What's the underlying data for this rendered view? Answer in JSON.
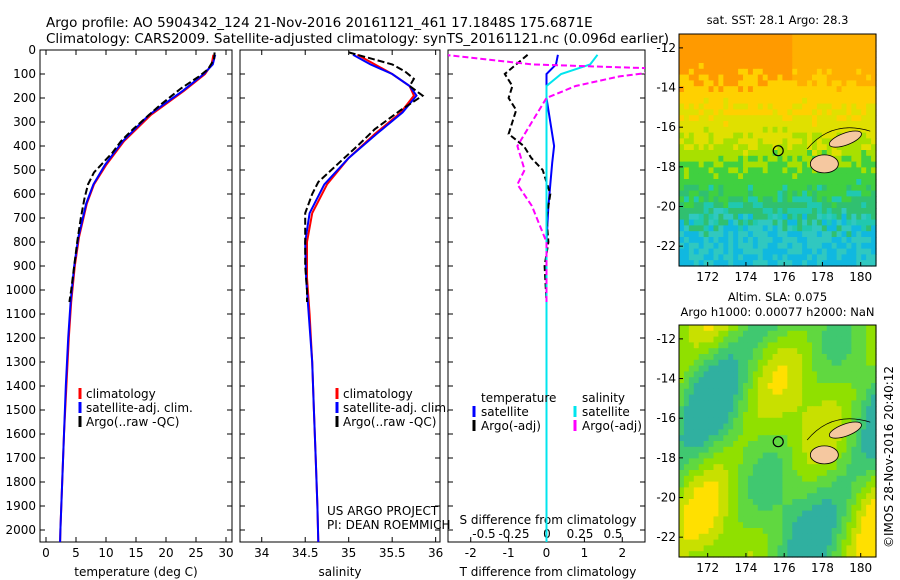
{
  "header": {
    "line1": "Argo profile: AO 5904342_124 21-Nov-2016 20161121_461 17.1848S 175.6871E",
    "line2": "Climatology: CARS2009. Satellite-adjusted climatology: synTS_20161121.nc (0.096d earlier)"
  },
  "colors": {
    "climatology": "#ff0000",
    "satellite": "#0000ff",
    "argo": "#000000",
    "salinity_satellite": "#00e5ee",
    "salinity_argo": "#ff00ff",
    "land": "#f5c8a0"
  },
  "chart_data": [
    {
      "type": "line",
      "id": "temperature",
      "xlabel": "temperature (deg C)",
      "xlim": [
        -1,
        31
      ],
      "xticks": [
        0,
        5,
        10,
        15,
        20,
        25,
        30
      ],
      "ylim": [
        0,
        2050
      ],
      "yticks": [
        0,
        100,
        200,
        300,
        400,
        500,
        600,
        700,
        800,
        900,
        1000,
        1100,
        1200,
        1300,
        1400,
        1500,
        1600,
        1700,
        1800,
        1900,
        2000
      ],
      "legend": [
        "climatology",
        "satellite-adj. clim.",
        "Argo(..raw -QC)"
      ],
      "series": [
        {
          "name": "climatology",
          "color": "#ff0000",
          "points": [
            [
              27.9,
              20
            ],
            [
              27.6,
              60
            ],
            [
              26.5,
              100
            ],
            [
              23,
              170
            ],
            [
              17.5,
              270
            ],
            [
              13,
              380
            ],
            [
              10,
              480
            ],
            [
              8,
              560
            ],
            [
              6.8,
              640
            ],
            [
              5.5,
              780
            ],
            [
              4.8,
              900
            ],
            [
              4.2,
              1050
            ],
            [
              3.8,
              1200
            ],
            [
              3.4,
              1400
            ],
            [
              3.0,
              1600
            ],
            [
              2.7,
              1800
            ],
            [
              2.4,
              2000
            ],
            [
              2.35,
              2050
            ]
          ]
        },
        {
          "name": "satellite-adj. clim.",
          "color": "#0000ff",
          "points": [
            [
              28.2,
              20
            ],
            [
              27.8,
              60
            ],
            [
              26.3,
              100
            ],
            [
              22.8,
              170
            ],
            [
              17.2,
              270
            ],
            [
              12.8,
              380
            ],
            [
              9.8,
              480
            ],
            [
              7.9,
              560
            ],
            [
              6.7,
              640
            ],
            [
              5.4,
              780
            ],
            [
              4.7,
              900
            ],
            [
              4.1,
              1050
            ],
            [
              3.7,
              1200
            ],
            [
              3.3,
              1400
            ],
            [
              3.0,
              1600
            ],
            [
              2.7,
              1800
            ],
            [
              2.4,
              2000
            ],
            [
              2.35,
              2050
            ]
          ]
        },
        {
          "name": "Argo(..raw -QC)",
          "color": "#000000",
          "points": [
            [
              28.1,
              10
            ],
            [
              28.0,
              40
            ],
            [
              27.0,
              80
            ],
            [
              25.5,
              110
            ],
            [
              22.5,
              160
            ],
            [
              19,
              230
            ],
            [
              14.5,
              330
            ],
            [
              12.5,
              380
            ],
            [
              11,
              430
            ],
            [
              9.5,
              470
            ],
            [
              8,
              510
            ],
            [
              7,
              560
            ],
            [
              6.4,
              620
            ],
            [
              5.8,
              700
            ],
            [
              5.2,
              800
            ],
            [
              4.7,
              900
            ],
            [
              4.2,
              1000
            ],
            [
              3.9,
              1050
            ]
          ]
        }
      ]
    },
    {
      "type": "line",
      "id": "salinity",
      "xlabel": "salinity",
      "xlim": [
        33.75,
        36.05
      ],
      "xticks": [
        34,
        34.5,
        35,
        35.5,
        36
      ],
      "ylim": [
        0,
        2050
      ],
      "legend": [
        "climatology",
        "satellite-adj. clim.",
        "Argo(..raw -QC)"
      ],
      "annotation": [
        "US ARGO PROJECT",
        "PI: DEAN ROEMMICH"
      ],
      "series": [
        {
          "name": "climatology",
          "color": "#ff0000",
          "points": [
            [
              35.1,
              20
            ],
            [
              35.3,
              60
            ],
            [
              35.5,
              100
            ],
            [
              35.7,
              150
            ],
            [
              35.75,
              190
            ],
            [
              35.6,
              260
            ],
            [
              35.3,
              350
            ],
            [
              35.0,
              450
            ],
            [
              34.75,
              560
            ],
            [
              34.58,
              680
            ],
            [
              34.52,
              800
            ],
            [
              34.52,
              950
            ],
            [
              34.55,
              1100
            ],
            [
              34.58,
              1300
            ],
            [
              34.6,
              1500
            ],
            [
              34.62,
              1700
            ],
            [
              34.64,
              1900
            ],
            [
              34.65,
              2050
            ]
          ]
        },
        {
          "name": "satellite-adj. clim.",
          "color": "#0000ff",
          "points": [
            [
              35.05,
              20
            ],
            [
              35.25,
              60
            ],
            [
              35.5,
              100
            ],
            [
              35.7,
              150
            ],
            [
              35.78,
              190
            ],
            [
              35.62,
              260
            ],
            [
              35.32,
              350
            ],
            [
              35.0,
              450
            ],
            [
              34.72,
              560
            ],
            [
              34.55,
              680
            ],
            [
              34.5,
              800
            ],
            [
              34.51,
              950
            ],
            [
              34.54,
              1100
            ],
            [
              34.58,
              1300
            ],
            [
              34.6,
              1500
            ],
            [
              34.62,
              1700
            ],
            [
              34.64,
              1900
            ],
            [
              34.65,
              2050
            ]
          ]
        },
        {
          "name": "Argo(..raw -QC)",
          "color": "#000000",
          "points": [
            [
              35.0,
              10
            ],
            [
              35.3,
              40
            ],
            [
              35.5,
              60
            ],
            [
              35.65,
              90
            ],
            [
              35.75,
              120
            ],
            [
              35.7,
              150
            ],
            [
              35.85,
              190
            ],
            [
              35.6,
              250
            ],
            [
              35.3,
              330
            ],
            [
              35.1,
              400
            ],
            [
              34.92,
              460
            ],
            [
              34.8,
              500
            ],
            [
              34.65,
              550
            ],
            [
              34.58,
              600
            ],
            [
              34.5,
              680
            ],
            [
              34.5,
              780
            ],
            [
              34.5,
              900
            ],
            [
              34.52,
              1000
            ],
            [
              34.52,
              1050
            ]
          ]
        }
      ]
    },
    {
      "type": "line",
      "id": "difference",
      "xlabel": "T difference from climatology",
      "xlabel_top": "S difference from climatology",
      "xlim": [
        -2.6,
        2.6
      ],
      "xticks": [
        -2,
        -1,
        0,
        1,
        2
      ],
      "xticks_top": [
        -0.5,
        -0.25,
        0,
        0.25,
        0.5
      ],
      "ylim": [
        0,
        2050
      ],
      "legend_left": [
        "temperature",
        "satellite",
        "Argo(-adj)"
      ],
      "legend_right": [
        "salinity",
        "satellite",
        "Argo(-adj)"
      ],
      "series": [
        {
          "name": "temperature satellite",
          "color": "#0000ff",
          "points": [
            [
              0.3,
              20
            ],
            [
              0.25,
              60
            ],
            [
              0,
              100
            ],
            [
              0,
              200
            ],
            [
              0.1,
              300
            ],
            [
              0.2,
              400
            ],
            [
              0.15,
              470
            ],
            [
              0.1,
              560
            ],
            [
              0.05,
              650
            ],
            [
              0,
              800
            ],
            [
              0,
              2050
            ]
          ]
        },
        {
          "name": "temperature Argo(-adj)",
          "color": "#000000",
          "points": [
            [
              -0.5,
              20
            ],
            [
              -0.8,
              60
            ],
            [
              -1.1,
              100
            ],
            [
              -0.9,
              150
            ],
            [
              -1.0,
              200
            ],
            [
              -0.8,
              250
            ],
            [
              -0.9,
              300
            ],
            [
              -1.0,
              350
            ],
            [
              -0.6,
              400
            ],
            [
              -0.4,
              450
            ],
            [
              -0.1,
              500
            ],
            [
              0.1,
              600
            ],
            [
              0.0,
              700
            ],
            [
              0.05,
              800
            ],
            [
              -0.05,
              900
            ],
            [
              0.0,
              1050
            ]
          ]
        },
        {
          "name": "salinity satellite",
          "color": "#00e5ee",
          "points": [
            [
              0.35,
              20
            ],
            [
              0.3,
              60
            ],
            [
              0.1,
              100
            ],
            [
              0,
              150
            ],
            [
              0,
              300
            ],
            [
              0,
              600
            ],
            [
              0,
              2050
            ]
          ]
        },
        {
          "name": "salinity Argo(-adj)",
          "color": "#ff00ff",
          "points": [
            [
              -0.7,
              20
            ],
            [
              -0.1,
              60
            ],
            [
              0.9,
              80
            ],
            [
              0.5,
              110
            ],
            [
              0.2,
              150
            ],
            [
              0.0,
              200
            ],
            [
              -0.1,
              300
            ],
            [
              -0.2,
              400
            ],
            [
              -0.15,
              500
            ],
            [
              -0.2,
              560
            ],
            [
              -0.1,
              650
            ],
            [
              0,
              800
            ],
            [
              0,
              1050
            ]
          ]
        }
      ]
    },
    {
      "type": "heatmap",
      "id": "sst-map",
      "title": "sat. SST: 28.1  Argo: 28.3",
      "xlim": [
        170.5,
        180.8
      ],
      "xticks": [
        172,
        174,
        176,
        178,
        180
      ],
      "ylim": [
        -23,
        -11.3
      ],
      "yticks": [
        -12,
        -14,
        -16,
        -18,
        -20,
        -22
      ],
      "argo_position": [
        175.6871,
        -17.1848
      ]
    },
    {
      "type": "heatmap",
      "id": "sla-map",
      "title": "Altim. SLA: 0.075",
      "subtitle": "Argo h1000: 0.00077 h2000: NaN",
      "xlim": [
        170.5,
        180.8
      ],
      "xticks": [
        172,
        174,
        176,
        178,
        180
      ],
      "ylim": [
        -23,
        -11.3
      ],
      "yticks": [
        -12,
        -14,
        -16,
        -18,
        -20,
        -22
      ],
      "argo_position": [
        175.6871,
        -17.1848
      ]
    }
  ],
  "credit": "©IMOS 28-Nov-2016 20:40:12"
}
